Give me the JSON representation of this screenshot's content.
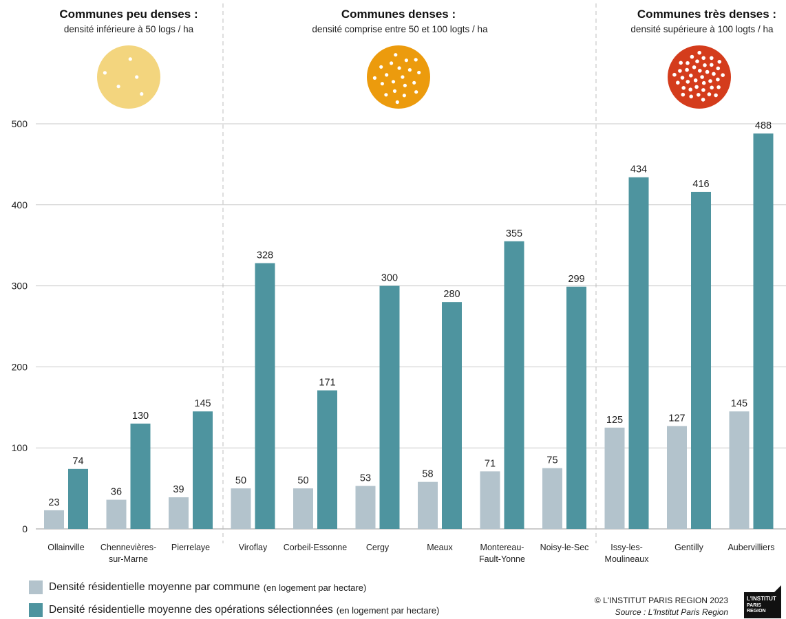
{
  "chart_data": {
    "type": "bar",
    "title": "",
    "xlabel": "",
    "ylabel": "",
    "ylim": [
      0,
      500
    ],
    "yticks": [
      0,
      100,
      200,
      300,
      400,
      500
    ],
    "grid": true,
    "categories": [
      "Ollainville",
      "Chennevières-sur-Marne",
      "Pierrelaye",
      "Viroflay",
      "Corbeil-Essonne",
      "Cergy",
      "Meaux",
      "Montereau-Fault-Yonne",
      "Noisy-le-Sec",
      "Issy-les-Moulineaux",
      "Gentilly",
      "Aubervilliers"
    ],
    "category_lines": [
      [
        "Ollainville"
      ],
      [
        "Chennevières-",
        "sur-Marne"
      ],
      [
        "Pierrelaye"
      ],
      [
        "Viroflay"
      ],
      [
        "Corbeil-Essonne"
      ],
      [
        "Cergy"
      ],
      [
        "Meaux"
      ],
      [
        "Montereau-",
        "Fault-Yonne"
      ],
      [
        "Noisy-le-Sec"
      ],
      [
        "Issy-les-",
        "Moulineaux"
      ],
      [
        "Gentilly"
      ],
      [
        "Aubervilliers"
      ]
    ],
    "series": [
      {
        "name": "Densité résidentielle moyenne par commune",
        "unit": "(en logement par hectare)",
        "color": "#b3c3cc",
        "values": [
          23,
          36,
          39,
          50,
          50,
          53,
          58,
          71,
          75,
          125,
          127,
          145
        ]
      },
      {
        "name": "Densité résidentielle moyenne des opérations sélectionnées",
        "unit": "(en logement par hectare)",
        "color": "#4e949f",
        "values": [
          74,
          130,
          145,
          328,
          171,
          300,
          280,
          355,
          299,
          434,
          416,
          488
        ]
      }
    ],
    "groups": [
      {
        "title": "Communes peu denses :",
        "subtitle": "densité inférieure à 50 logs / ha",
        "color": "#f3d57e",
        "members": 3,
        "dots": 5
      },
      {
        "title": "Communes denses :",
        "subtitle": "densité comprise entre 50 et 100 logts / ha",
        "color": "#ec9b0d",
        "members": 6,
        "dots": 20
      },
      {
        "title": "Communes très denses :",
        "subtitle": "densité supérieure à 100 logts / ha",
        "color": "#d43c1c",
        "members": 3,
        "dots": 40
      }
    ],
    "legend_position": "bottom-left"
  },
  "footer": {
    "copyright": "© L'INSTITUT PARIS REGION 2023",
    "source": "Source : L'Institut Paris Region",
    "logo_lines": [
      "L'INSTITUT",
      "PARIS",
      "REGION"
    ]
  }
}
